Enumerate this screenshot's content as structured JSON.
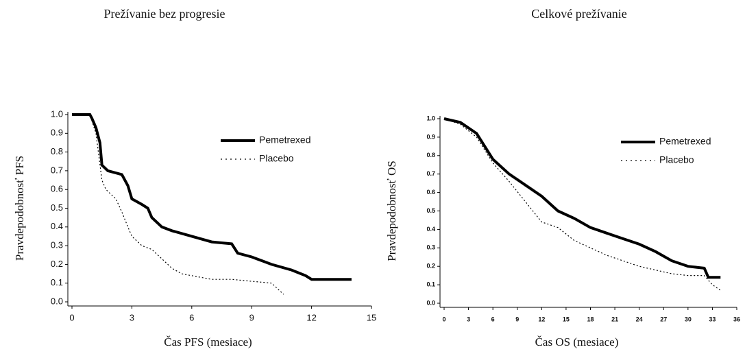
{
  "chart_data": [
    {
      "type": "line",
      "title": "Prežívanie bez progresie",
      "xlabel": "Čas PFS (mesiace)",
      "ylabel": "Pravdepodobnosť  PFS",
      "xlim": [
        0,
        15
      ],
      "xticks": [
        0,
        3,
        6,
        9,
        12,
        15
      ],
      "ylim": [
        0,
        1
      ],
      "yticks": [
        {
          "value": 0,
          "label": "0.0"
        },
        0.1,
        0.2,
        0.3,
        0.4,
        0.5,
        0.6,
        0.7,
        0.8,
        0.9,
        {
          "value": 1,
          "label": "1.0"
        }
      ],
      "legend": "upper right",
      "series": [
        {
          "name": "Pemetrexed",
          "color": "#000000",
          "width": 4,
          "dashed": false,
          "x": [
            0,
            0.9,
            1.0,
            1.2,
            1.4,
            1.5,
            1.8,
            2.5,
            2.8,
            3.0,
            3.5,
            3.8,
            4.0,
            4.5,
            5.0,
            6.0,
            7.0,
            8.0,
            8.3,
            9.0,
            10.0,
            11.0,
            11.7,
            12.0,
            14.0
          ],
          "values": [
            1.0,
            1.0,
            0.98,
            0.93,
            0.85,
            0.73,
            0.7,
            0.68,
            0.62,
            0.55,
            0.52,
            0.5,
            0.45,
            0.4,
            0.38,
            0.35,
            0.32,
            0.31,
            0.26,
            0.24,
            0.2,
            0.17,
            0.14,
            0.12,
            0.12
          ]
        },
        {
          "name": "Placebo",
          "color": "#000000",
          "width": 1.2,
          "dashed": true,
          "x": [
            0,
            0.9,
            1.2,
            1.5,
            1.7,
            2.2,
            2.5,
            2.8,
            3.0,
            3.5,
            4.0,
            4.5,
            5.0,
            5.5,
            6.0,
            7.0,
            8.0,
            9.0,
            10.0,
            10.3,
            10.6
          ],
          "values": [
            1.0,
            1.0,
            0.9,
            0.65,
            0.6,
            0.55,
            0.48,
            0.4,
            0.35,
            0.3,
            0.28,
            0.23,
            0.18,
            0.15,
            0.14,
            0.12,
            0.12,
            0.11,
            0.1,
            0.07,
            0.04
          ]
        }
      ]
    },
    {
      "type": "line",
      "title": "Celkové prežívanie",
      "xlabel": "Čas OS (mesiace)",
      "ylabel": "Pravdepodobnosť  OS",
      "xlim": [
        0,
        36
      ],
      "xticks": [
        0,
        3,
        6,
        9,
        12,
        15,
        18,
        21,
        24,
        27,
        30,
        33,
        36
      ],
      "ylim": [
        0,
        1
      ],
      "yticks": [
        {
          "value": 0,
          "label": "0.0"
        },
        0.1,
        0.2,
        0.3,
        0.4,
        0.5,
        0.6,
        0.7,
        0.8,
        0.9,
        {
          "value": 1,
          "label": "1.0"
        }
      ],
      "legend": "upper right",
      "series": [
        {
          "name": "Pemetrexed",
          "color": "#000000",
          "width": 4,
          "dashed": false,
          "x": [
            0,
            2,
            4,
            6,
            8,
            10,
            12,
            14,
            16,
            18,
            20,
            22,
            24,
            26,
            28,
            30,
            32,
            32.5,
            34
          ],
          "values": [
            1.0,
            0.98,
            0.92,
            0.78,
            0.7,
            0.64,
            0.58,
            0.5,
            0.46,
            0.41,
            0.38,
            0.35,
            0.32,
            0.28,
            0.23,
            0.2,
            0.19,
            0.14,
            0.14
          ]
        },
        {
          "name": "Placebo",
          "color": "#000000",
          "width": 1.2,
          "dashed": true,
          "x": [
            0,
            2,
            4,
            6,
            8,
            10,
            12,
            14,
            16,
            18,
            20,
            22,
            24,
            26,
            28,
            30,
            32,
            33,
            34
          ],
          "values": [
            1.0,
            0.97,
            0.9,
            0.76,
            0.66,
            0.55,
            0.44,
            0.41,
            0.34,
            0.3,
            0.26,
            0.23,
            0.2,
            0.18,
            0.16,
            0.15,
            0.15,
            0.1,
            0.07
          ]
        }
      ]
    }
  ]
}
